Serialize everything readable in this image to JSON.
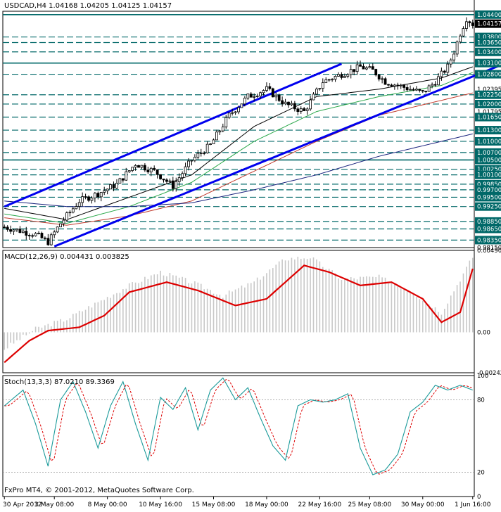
{
  "header": {
    "symbol": "USDCAD,H4",
    "ohlc": "1.04168 1.04205 1.04125 1.04157",
    "current_price": "1.04157"
  },
  "footer": {
    "copyright": "FxPro MT4, © 2001-2012, MetaQuotes Software Corp."
  },
  "colors": {
    "bg": "#ffffff",
    "candles": "#000000",
    "hlines": "#006868",
    "channel": "#0000ee",
    "ma_black": "#000000",
    "ma_green": "#2aa84a",
    "ma_red": "#c0392b",
    "ma_blue": "#1a237e",
    "macd_hist": "#c8c8c8",
    "macd_signal": "#dd0000",
    "stoch_main": "#1a9a9a",
    "stoch_signal": "#dd0000"
  },
  "chart_data": [
    {
      "type": "candlestick",
      "title": "USDCAD,H4",
      "ylim": [
        0.9815,
        1.0449
      ],
      "x_tick_labels": [
        "30 Apr 2012",
        "3 May 08:00",
        "8 May 00:00",
        "10 May 16:00",
        "15 May 08:00",
        "18 May 00:00",
        "22 May 16:00",
        "25 May 08:00",
        "30 May 00:00",
        "1 Jun 16:00"
      ],
      "y_tick_labels": [
        "1.04400",
        "1.04157",
        "1.03800",
        "1.03650",
        "1.03400",
        "1.03100",
        "1.02800",
        "1.02395",
        "1.02250",
        "1.02000",
        "1.01795",
        "1.01650",
        "1.01300",
        "1.01000",
        "1.00700",
        "1.00500",
        "1.00250",
        "1.00100",
        "0.99850",
        "0.99700",
        "0.99500",
        "0.99250",
        "0.98850",
        "0.98650",
        "0.98350",
        "0.98150"
      ],
      "horizontal_levels": [
        1.044,
        1.038,
        1.0365,
        1.034,
        1.031,
        1.028,
        1.0225,
        1.02,
        1.0165,
        1.013,
        1.01,
        1.007,
        1.005,
        1.0025,
        1.001,
        0.9985,
        0.997,
        0.995,
        0.9925,
        0.9885,
        0.9865,
        0.9835
      ],
      "channel_lines": [
        {
          "name": "upper",
          "from": [
            0,
            0.9925
          ],
          "to": [
            108,
            1.0308
          ]
        },
        {
          "name": "lower",
          "from": [
            16,
            0.9818
          ],
          "to": [
            170,
            1.0342
          ]
        }
      ],
      "close_path_keypoints": [
        [
          0,
          0.987
        ],
        [
          10,
          0.985
        ],
        [
          14,
          0.983
        ],
        [
          18,
          0.988
        ],
        [
          24,
          0.994
        ],
        [
          30,
          0.996
        ],
        [
          36,
          0.9985
        ],
        [
          42,
          1.004
        ],
        [
          48,
          1.002
        ],
        [
          54,
          0.998
        ],
        [
          60,
          1.005
        ],
        [
          66,
          1.009
        ],
        [
          72,
          1.017
        ],
        [
          78,
          1.022
        ],
        [
          84,
          1.024
        ],
        [
          90,
          1.02
        ],
        [
          96,
          1.018
        ],
        [
          102,
          1.026
        ],
        [
          108,
          1.028
        ],
        [
          114,
          1.03
        ],
        [
          118,
          1.029
        ],
        [
          122,
          1.026
        ],
        [
          126,
          1.025
        ],
        [
          130,
          1.024
        ],
        [
          134,
          1.023
        ],
        [
          138,
          1.026
        ],
        [
          142,
          1.03
        ],
        [
          144,
          1.034
        ],
        [
          146,
          1.039
        ],
        [
          148,
          1.043
        ],
        [
          150,
          1.0415
        ]
      ],
      "moving_averages": [
        {
          "color": "ma_black",
          "keypoints": [
            [
              0,
              0.992
            ],
            [
              20,
              0.989
            ],
            [
              40,
              0.995
            ],
            [
              60,
              1.001
            ],
            [
              80,
              1.014
            ],
            [
              100,
              1.022
            ],
            [
              120,
              1.024
            ],
            [
              140,
              1.027
            ],
            [
              150,
              1.03
            ]
          ]
        },
        {
          "color": "ma_green",
          "keypoints": [
            [
              0,
              0.9905
            ],
            [
              20,
              0.988
            ],
            [
              40,
              0.9925
            ],
            [
              60,
              0.999
            ],
            [
              80,
              1.01
            ],
            [
              100,
              1.018
            ],
            [
              120,
              1.022
            ],
            [
              140,
              1.025
            ],
            [
              150,
              1.0285
            ]
          ]
        },
        {
          "color": "ma_red",
          "keypoints": [
            [
              0,
              0.9895
            ],
            [
              20,
              0.9875
            ],
            [
              40,
              0.99
            ],
            [
              60,
              0.994
            ],
            [
              80,
              1.002
            ],
            [
              100,
              1.01
            ],
            [
              120,
              1.017
            ],
            [
              140,
              1.021
            ],
            [
              150,
              1.023
            ]
          ]
        },
        {
          "color": "ma_blue",
          "keypoints": [
            [
              0,
              0.994
            ],
            [
              20,
              0.9925
            ],
            [
              40,
              0.9925
            ],
            [
              60,
              0.9935
            ],
            [
              80,
              0.997
            ],
            [
              100,
              1.001
            ],
            [
              120,
              1.006
            ],
            [
              140,
              1.01
            ],
            [
              150,
              1.012
            ]
          ]
        }
      ]
    },
    {
      "type": "histogram+line",
      "title": "MACD(12,26,9) 0.004431 0.003825",
      "ylim": [
        -0.00242,
        0.0049
      ],
      "y_tick_labels": [
        "0.00490",
        "0.00",
        "-0.00242"
      ],
      "macd_keypoints": [
        [
          0,
          -0.001
        ],
        [
          10,
          0.0002
        ],
        [
          20,
          0.0008
        ],
        [
          30,
          0.0018
        ],
        [
          40,
          0.0028
        ],
        [
          50,
          0.0036
        ],
        [
          60,
          0.003
        ],
        [
          70,
          0.0022
        ],
        [
          80,
          0.003
        ],
        [
          90,
          0.0044
        ],
        [
          98,
          0.0045
        ],
        [
          108,
          0.0032
        ],
        [
          120,
          0.0033
        ],
        [
          130,
          0.0025
        ],
        [
          140,
          0.0012
        ],
        [
          150,
          0.0045
        ]
      ],
      "signal_keypoints": [
        [
          0,
          -0.0018
        ],
        [
          8,
          -0.0005
        ],
        [
          14,
          0.0001
        ],
        [
          24,
          0.0003
        ],
        [
          32,
          0.001
        ],
        [
          40,
          0.0024
        ],
        [
          52,
          0.003
        ],
        [
          62,
          0.0025
        ],
        [
          74,
          0.0016
        ],
        [
          84,
          0.002
        ],
        [
          96,
          0.004
        ],
        [
          104,
          0.0036
        ],
        [
          114,
          0.0028
        ],
        [
          124,
          0.003
        ],
        [
          134,
          0.002
        ],
        [
          140,
          0.0006
        ],
        [
          146,
          0.0012
        ],
        [
          150,
          0.0038
        ]
      ]
    },
    {
      "type": "line",
      "title": "Stoch(13,3,3) 87.0210 89.3369",
      "ylim": [
        0,
        100
      ],
      "y_tick_labels": [
        "100",
        "80",
        "20",
        "0"
      ],
      "stoch_keypoints": [
        [
          0,
          75
        ],
        [
          6,
          88
        ],
        [
          10,
          60
        ],
        [
          14,
          25
        ],
        [
          18,
          80
        ],
        [
          22,
          95
        ],
        [
          26,
          70
        ],
        [
          30,
          40
        ],
        [
          34,
          75
        ],
        [
          38,
          95
        ],
        [
          42,
          60
        ],
        [
          46,
          30
        ],
        [
          50,
          82
        ],
        [
          54,
          72
        ],
        [
          58,
          90
        ],
        [
          62,
          55
        ],
        [
          66,
          88
        ],
        [
          70,
          98
        ],
        [
          74,
          80
        ],
        [
          78,
          90
        ],
        [
          82,
          65
        ],
        [
          86,
          42
        ],
        [
          90,
          30
        ],
        [
          94,
          75
        ],
        [
          98,
          80
        ],
        [
          102,
          78
        ],
        [
          106,
          80
        ],
        [
          110,
          85
        ],
        [
          114,
          40
        ],
        [
          118,
          18
        ],
        [
          122,
          22
        ],
        [
          126,
          35
        ],
        [
          130,
          70
        ],
        [
          134,
          78
        ],
        [
          138,
          92
        ],
        [
          142,
          88
        ],
        [
          146,
          92
        ],
        [
          150,
          88
        ]
      ]
    }
  ]
}
